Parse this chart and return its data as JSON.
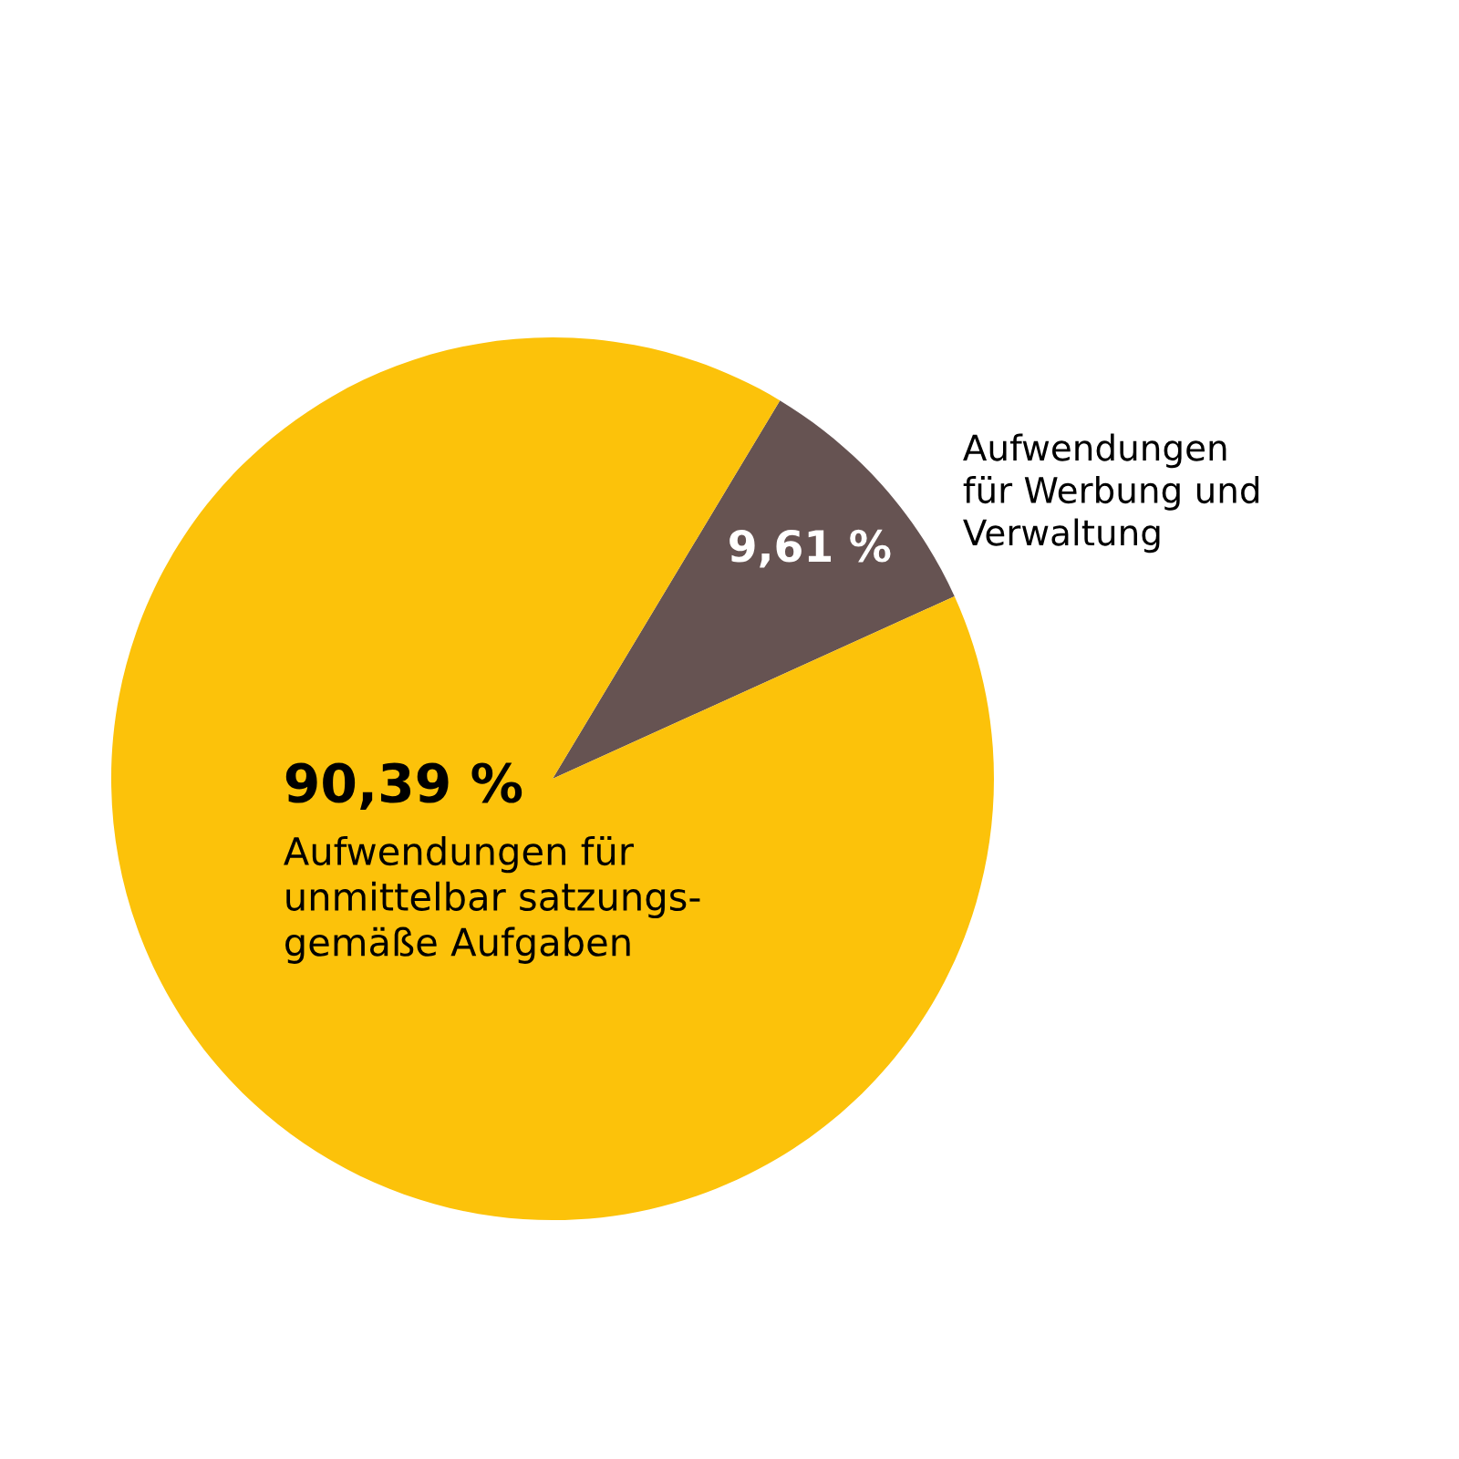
{
  "chart_data": {
    "type": "pie",
    "categories": [
      "Aufwendungen\nfür Werbung und\nVerwaltung",
      "Aufwendungen für\nunmittelbar satzungs-\ngemäße Aufgaben"
    ],
    "values": [
      9.61,
      90.39
    ],
    "colors": [
      "#665352",
      "#fcc20a"
    ],
    "value_labels": [
      "9,61 %",
      "90,39 %"
    ]
  }
}
